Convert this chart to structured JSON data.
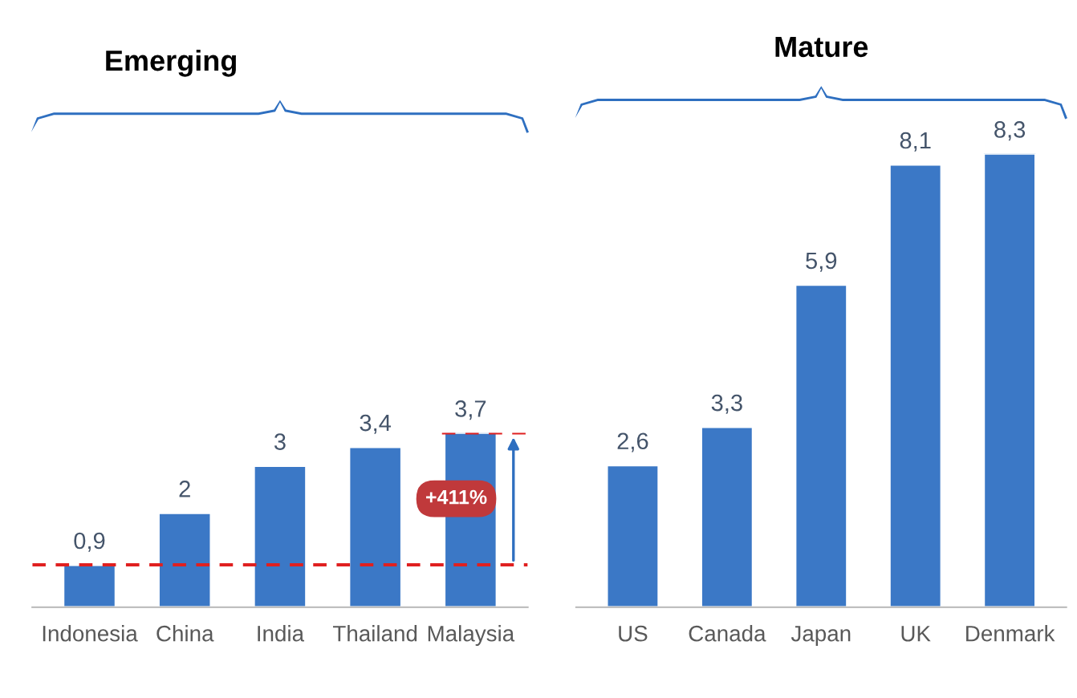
{
  "chart_data": [
    {
      "type": "bar",
      "title": "Emerging",
      "categories": [
        "Indonesia",
        "China",
        "India",
        "Thailand",
        "Malaysia"
      ],
      "values": [
        0.9,
        2,
        3,
        3.4,
        3.7
      ],
      "color": "#3b78c6",
      "value_labels": [
        "0,9",
        "2",
        "3",
        "3,4",
        "3,7"
      ],
      "tick_labels": "x",
      "ref_lines": [
        {
          "axis": "y",
          "value": 0.9,
          "color": "#e02020",
          "line_style": "dashed"
        },
        {
          "axis": "y",
          "value": 3.7,
          "color": "#e02020",
          "line_style": "dashed"
        }
      ],
      "annotations": [
        "+411%"
      ]
    },
    {
      "type": "bar",
      "title": "Mature",
      "categories": [
        "US",
        "Canada",
        "Japan",
        "UK",
        "Denmark"
      ],
      "values": [
        2.6,
        3.3,
        5.9,
        8.1,
        8.3
      ],
      "color": "#3b78c6",
      "value_labels": [
        "2,6",
        "3,3",
        "5,9",
        "8,1",
        "8,3"
      ],
      "tick_labels": "x"
    }
  ]
}
